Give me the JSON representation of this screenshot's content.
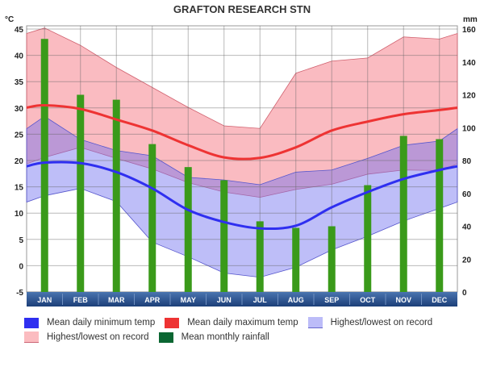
{
  "chart_data": {
    "type": "bar+line+area",
    "title": "GRAFTON RESEARCH STN",
    "left_axis_unit": "°C",
    "right_axis_unit": "mm",
    "categories": [
      "JAN",
      "FEB",
      "MAR",
      "APR",
      "MAY",
      "JUN",
      "JUL",
      "AUG",
      "SEP",
      "OCT",
      "NOV",
      "DEC"
    ],
    "temp_ylim": [
      -5,
      45
    ],
    "temp_ticks": [
      -5,
      0,
      5,
      10,
      15,
      20,
      25,
      30,
      35,
      40,
      45
    ],
    "rain_ylim": [
      0,
      160
    ],
    "rain_ticks": [
      0,
      20,
      40,
      60,
      80,
      100,
      120,
      140,
      160
    ],
    "grid": true,
    "legend_placement": "bottom",
    "series": {
      "mean_min": {
        "name": "Mean daily minimum temp",
        "color": "#2f2ff0",
        "values": [
          19.6,
          19.5,
          17.8,
          14.7,
          10.6,
          8.3,
          7.1,
          7.6,
          11.1,
          14.0,
          16.5,
          18.2
        ]
      },
      "mean_max": {
        "name": "Mean daily maximum temp",
        "color": "#ee3333",
        "values": [
          30.5,
          29.8,
          27.8,
          25.7,
          22.9,
          20.6,
          20.5,
          22.5,
          25.7,
          27.4,
          28.8,
          29.6
        ]
      },
      "min_record_band": {
        "name": "Highest/lowest on record",
        "color": "#bcbcf8",
        "high": [
          28.4,
          24.0,
          21.9,
          20.9,
          16.8,
          16.3,
          15.4,
          17.8,
          18.2,
          20.4,
          22.9,
          23.7
        ],
        "low": [
          13.3,
          14.7,
          12.2,
          4.5,
          1.7,
          -1.4,
          -2.2,
          -0.3,
          3.0,
          5.6,
          8.5,
          10.9
        ]
      },
      "max_record_band": {
        "name": "Highest/lowest on record",
        "color": "#fbbcc0",
        "high": [
          45.2,
          41.9,
          37.7,
          33.9,
          30.1,
          26.6,
          26.1,
          36.6,
          38.9,
          39.5,
          43.5,
          43.1
        ],
        "low": [
          20.6,
          22.5,
          20.4,
          18.4,
          15.8,
          14.0,
          13.0,
          14.5,
          15.5,
          17.4,
          18.2,
          18.1
        ]
      },
      "rainfall": {
        "name": "Mean monthly rainfall",
        "bar_color": "#3a9a1a",
        "legend_color": "#0b6632",
        "values": [
          154,
          120,
          117,
          90,
          76,
          68,
          43,
          39,
          40,
          65,
          95,
          93
        ]
      }
    }
  }
}
